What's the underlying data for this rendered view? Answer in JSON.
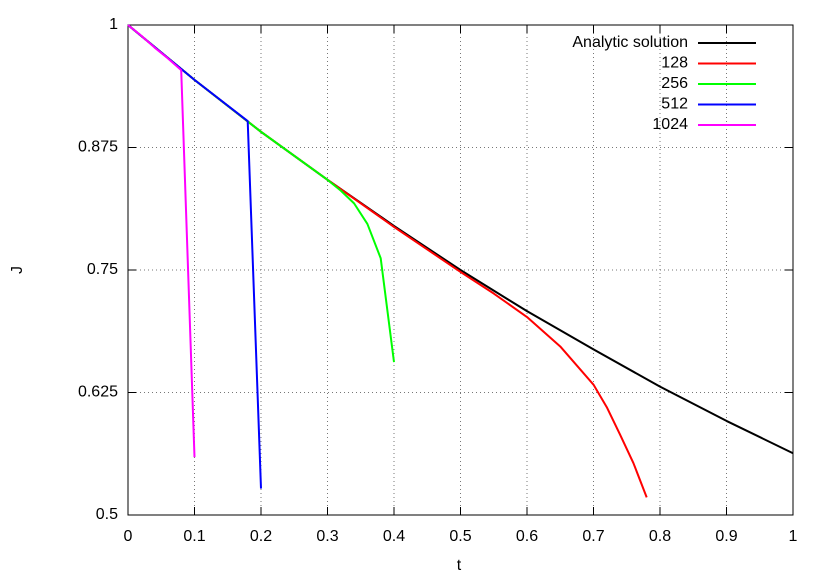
{
  "chart_data": {
    "type": "line",
    "xlabel": "t",
    "ylabel": "J",
    "xlim": [
      0,
      1
    ],
    "ylim": [
      0.5,
      1
    ],
    "xticks": [
      0,
      0.1,
      0.2,
      0.3,
      0.4,
      0.5,
      0.6,
      0.7,
      0.8,
      0.9,
      1
    ],
    "yticks": [
      0.5,
      0.625,
      0.75,
      0.875,
      1
    ],
    "grid": true,
    "legend": "upper right",
    "series": [
      {
        "name": "Analytic solution",
        "color": "#000000",
        "x": [
          0,
          0.1,
          0.2,
          0.3,
          0.4,
          0.5,
          0.6,
          0.7,
          0.8,
          0.9,
          1
        ],
        "values": [
          1,
          0.944,
          0.891,
          0.842,
          0.795,
          0.75,
          0.708,
          0.669,
          0.631,
          0.596,
          0.563
        ]
      },
      {
        "name": "128",
        "color": "#ff0000",
        "x": [
          0,
          0.1,
          0.2,
          0.3,
          0.4,
          0.5,
          0.55,
          0.6,
          0.65,
          0.7,
          0.72,
          0.74,
          0.76,
          0.78
        ],
        "values": [
          1,
          0.944,
          0.891,
          0.842,
          0.794,
          0.748,
          0.726,
          0.702,
          0.672,
          0.633,
          0.61,
          0.582,
          0.553,
          0.518
        ]
      },
      {
        "name": "256",
        "color": "#00ff00",
        "x": [
          0,
          0.1,
          0.2,
          0.3,
          0.32,
          0.34,
          0.36,
          0.38,
          0.4
        ],
        "values": [
          1,
          0.944,
          0.891,
          0.842,
          0.831,
          0.818,
          0.797,
          0.762,
          0.656
        ]
      },
      {
        "name": "512",
        "color": "#0000ff",
        "x": [
          0,
          0.1,
          0.18,
          0.2
        ],
        "values": [
          1,
          0.944,
          0.902,
          0.527
        ]
      },
      {
        "name": "1024",
        "color": "#ff00ff",
        "x": [
          0,
          0.02,
          0.04,
          0.06,
          0.08,
          0.1
        ],
        "values": [
          1,
          0.989,
          0.977,
          0.966,
          0.954,
          0.559
        ]
      }
    ]
  }
}
